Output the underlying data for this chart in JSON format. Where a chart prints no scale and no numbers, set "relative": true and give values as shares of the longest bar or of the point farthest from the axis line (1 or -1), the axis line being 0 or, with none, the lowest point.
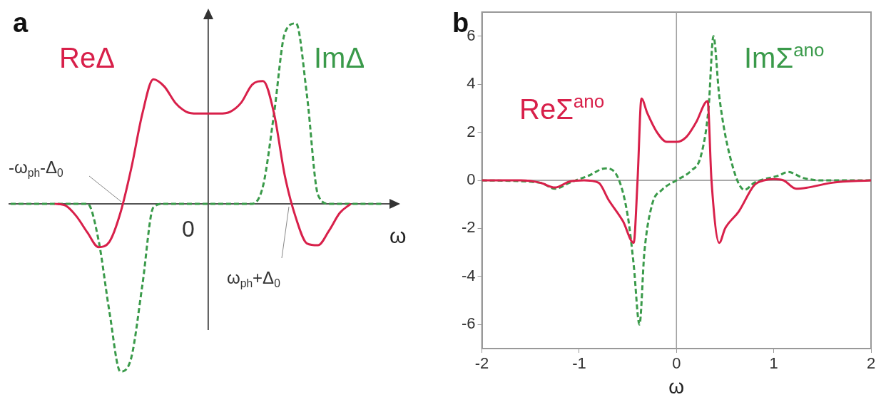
{
  "chart_data": [
    {
      "type": "line",
      "title": "a",
      "xlabel": "ω",
      "relative": true,
      "categories": [
        null,
        null,
        null,
        null,
        null,
        null,
        null,
        null,
        null,
        null,
        null,
        null,
        null,
        null,
        null,
        null,
        null,
        null,
        null,
        null,
        null,
        null,
        null,
        null,
        null,
        null,
        null,
        null,
        null,
        null,
        null,
        null,
        null,
        null,
        null
      ],
      "series": [
        {
          "name": "ReΔ",
          "color": "#d8204a",
          "line_style": "solid",
          "values": [
            null,
            null,
            null,
            null,
            0,
            -0.01,
            -0.07,
            -0.16,
            -0.24,
            -0.21,
            -0.05,
            0.2,
            0.5,
            0.69,
            0.65,
            0.56,
            0.51,
            0.5,
            0.5,
            0.5,
            0.51,
            0.56,
            0.66,
            0.68,
            0.5,
            0.15,
            -0.08,
            -0.22,
            -0.23,
            -0.15,
            -0.05,
            0,
            null,
            null,
            null
          ]
        },
        {
          "name": "ImΔ",
          "color": "#3a9a4a",
          "line_style": "dashed",
          "values": [
            0,
            0,
            0,
            0,
            0,
            0,
            0,
            0,
            -0.2,
            -0.6,
            -0.93,
            -0.85,
            -0.45,
            -0.02,
            0,
            0,
            0,
            0,
            0,
            0,
            0,
            0,
            0,
            0.1,
            0.5,
            0.95,
            1,
            0.6,
            0.05,
            0,
            0,
            0,
            0,
            0,
            0
          ]
        }
      ],
      "annotations": [
        "-ω$_{ph}$-Δ$_{0}$",
        "ω$_{ph}$+Δ$_{0}$",
        "0"
      ]
    },
    {
      "type": "line",
      "title": "b",
      "xlabel": "ω",
      "xlim": [
        -2,
        2
      ],
      "xticks": [
        -2,
        -1,
        0,
        1,
        2
      ],
      "ylim": [
        -7,
        7
      ],
      "yticks": [
        -6,
        -4,
        -2,
        0,
        2,
        4,
        6
      ],
      "ref_lines": [
        {
          "axis": "x",
          "value": 0,
          "color": "#a0a0a0"
        },
        {
          "axis": "y",
          "value": 0,
          "color": "#8c8c8c"
        }
      ],
      "series": [
        {
          "name": "ReΣ$^{ano}$",
          "color": "#d8204a",
          "line_style": "solid",
          "x": [
            -2,
            -1.6,
            -1.4,
            -1.25,
            -1.1,
            -0.95,
            -0.8,
            -0.7,
            -0.55,
            -0.44,
            -0.4,
            -0.36,
            -0.3,
            -0.2,
            -0.1,
            0,
            0.1,
            0.2,
            0.32,
            0.36,
            0.44,
            0.5,
            0.64,
            0.8,
            0.9,
            1,
            1.1,
            1.23,
            1.35,
            1.6,
            2
          ],
          "values": [
            0,
            0,
            -0.1,
            -0.3,
            -0.05,
            0,
            -0.1,
            -0.8,
            -1.7,
            -2.6,
            0,
            3.4,
            2.8,
            2,
            1.6,
            1.6,
            1.8,
            2.4,
            3.3,
            0,
            -2.6,
            -2,
            -1.3,
            -0.2,
            0,
            0.05,
            0,
            -0.35,
            -0.3,
            -0.1,
            0
          ]
        },
        {
          "name": "ImΣ$^{ano}$",
          "color": "#3a9a4a",
          "line_style": "dashed",
          "x": [
            -2,
            -1.4,
            -1.25,
            -1.1,
            -0.9,
            -0.73,
            -0.6,
            -0.5,
            -0.44,
            -0.38,
            -0.33,
            -0.25,
            -0.15,
            0,
            0.15,
            0.25,
            0.33,
            0.38,
            0.44,
            0.55,
            0.7,
            0.8,
            1.05,
            1.15,
            1.3,
            1.5,
            2
          ],
          "values": [
            0,
            -0.1,
            -0.35,
            -0.1,
            0.2,
            0.5,
            0.1,
            -1.5,
            -3.5,
            -6,
            -3,
            -1,
            -0.4,
            0,
            0.4,
            1,
            3,
            6,
            3.5,
            1,
            -0.4,
            -0.1,
            0.2,
            0.35,
            0.1,
            0,
            0
          ]
        }
      ]
    }
  ]
}
